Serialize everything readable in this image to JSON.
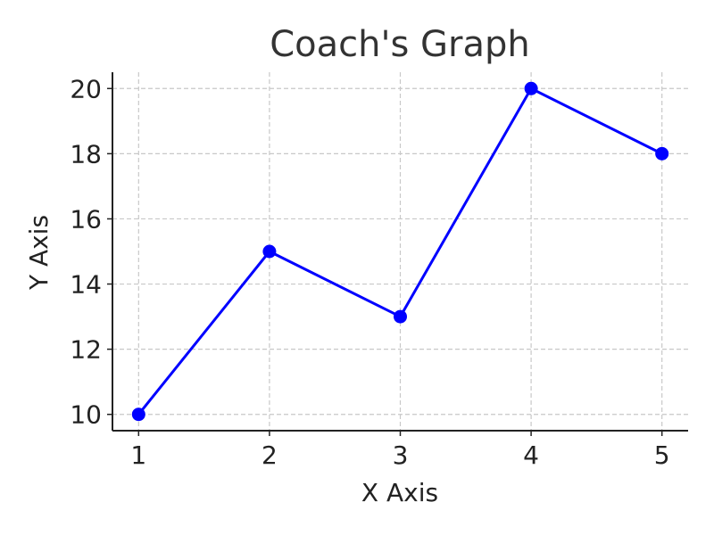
{
  "chart_data": {
    "type": "line",
    "title": "Coach's Graph",
    "xlabel": "X Axis",
    "ylabel": "Y Axis",
    "x": [
      1,
      2,
      3,
      4,
      5
    ],
    "series": [
      {
        "values": [
          10,
          15,
          13,
          20,
          18
        ]
      }
    ],
    "xlim": [
      0.8,
      5.2
    ],
    "ylim": [
      9.5,
      20.5
    ],
    "xticks": [
      "1",
      "2",
      "3",
      "4",
      "5"
    ],
    "yticks": [
      "10",
      "12",
      "14",
      "16",
      "18",
      "20"
    ],
    "grid": true,
    "legend": "none",
    "marker": "circle",
    "line_color": "#0000ff",
    "marker_color": "#0000ff"
  }
}
